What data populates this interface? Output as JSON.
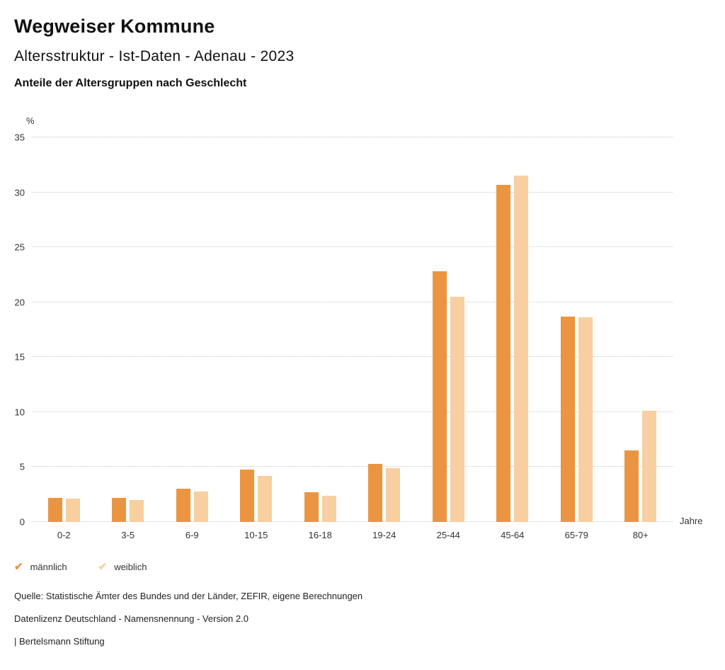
{
  "header": {
    "title": "Wegweiser Kommune",
    "subtitle": "Altersstruktur - Ist-Daten - Adenau - 2023",
    "caption": "Anteile der Altersgruppen nach Geschlecht"
  },
  "chart_data": {
    "type": "bar",
    "categories": [
      "0-2",
      "3-5",
      "6-9",
      "10-15",
      "16-18",
      "19-24",
      "25-44",
      "45-64",
      "65-79",
      "80+"
    ],
    "series": [
      {
        "name": "männlich",
        "color": "#EB9540",
        "values": [
          2.2,
          2.2,
          3.0,
          4.8,
          2.7,
          5.3,
          22.8,
          30.7,
          18.7,
          6.5
        ]
      },
      {
        "name": "weiblich",
        "color": "#F7CFA0",
        "values": [
          2.1,
          2.0,
          2.8,
          4.2,
          2.4,
          4.9,
          20.5,
          31.5,
          18.6,
          10.1
        ]
      }
    ],
    "title": "Anteile der Altersgruppen nach Geschlecht",
    "xlabel": "Jahre",
    "ylabel": "%",
    "ylim": [
      0,
      35
    ],
    "yticks": [
      0,
      5,
      10,
      15,
      20,
      25,
      30,
      35
    ],
    "grid": true,
    "legend_position": "bottom"
  },
  "legend": {
    "check_glyph": "✔"
  },
  "footer": {
    "source": "Quelle: Statistische Ämter des Bundes und der Länder, ZEFIR, eigene Berechnungen",
    "license": "Datenlizenz Deutschland - Namensnennung - Version 2.0",
    "publisher": "| Bertelsmann Stiftung"
  }
}
